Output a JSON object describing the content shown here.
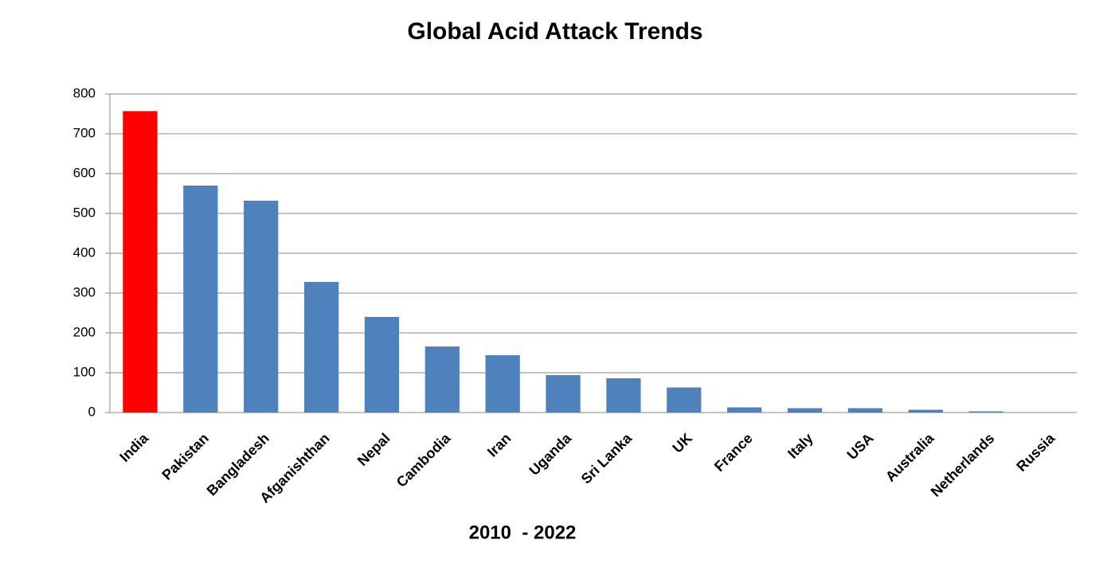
{
  "chart_data": {
    "type": "bar",
    "title": "Global Acid Attack Trends",
    "xlabel": "2010  - 2022",
    "categories": [
      "India",
      "Pakistan",
      "Bangladesh",
      "Afganishthan",
      "Nepal",
      "Cambodia",
      "Iran",
      "Uganda",
      "Sri Lanka",
      "UK",
      "France",
      "Italy",
      "USA",
      "Australia",
      "Netherlands",
      "Russia"
    ],
    "values": [
      757,
      570,
      532,
      328,
      240,
      166,
      144,
      94,
      86,
      63,
      13,
      11,
      11,
      7,
      3,
      0
    ],
    "colors": [
      "#ff0000",
      "#4f81bd",
      "#4f81bd",
      "#4f81bd",
      "#4f81bd",
      "#4f81bd",
      "#4f81bd",
      "#4f81bd",
      "#4f81bd",
      "#4f81bd",
      "#4f81bd",
      "#4f81bd",
      "#4f81bd",
      "#4f81bd",
      "#4f81bd",
      "#4f81bd"
    ],
    "ylim": [
      0,
      800
    ],
    "yticks": [
      0,
      100,
      200,
      300,
      400,
      500,
      600,
      700,
      800
    ],
    "grid": true
  }
}
